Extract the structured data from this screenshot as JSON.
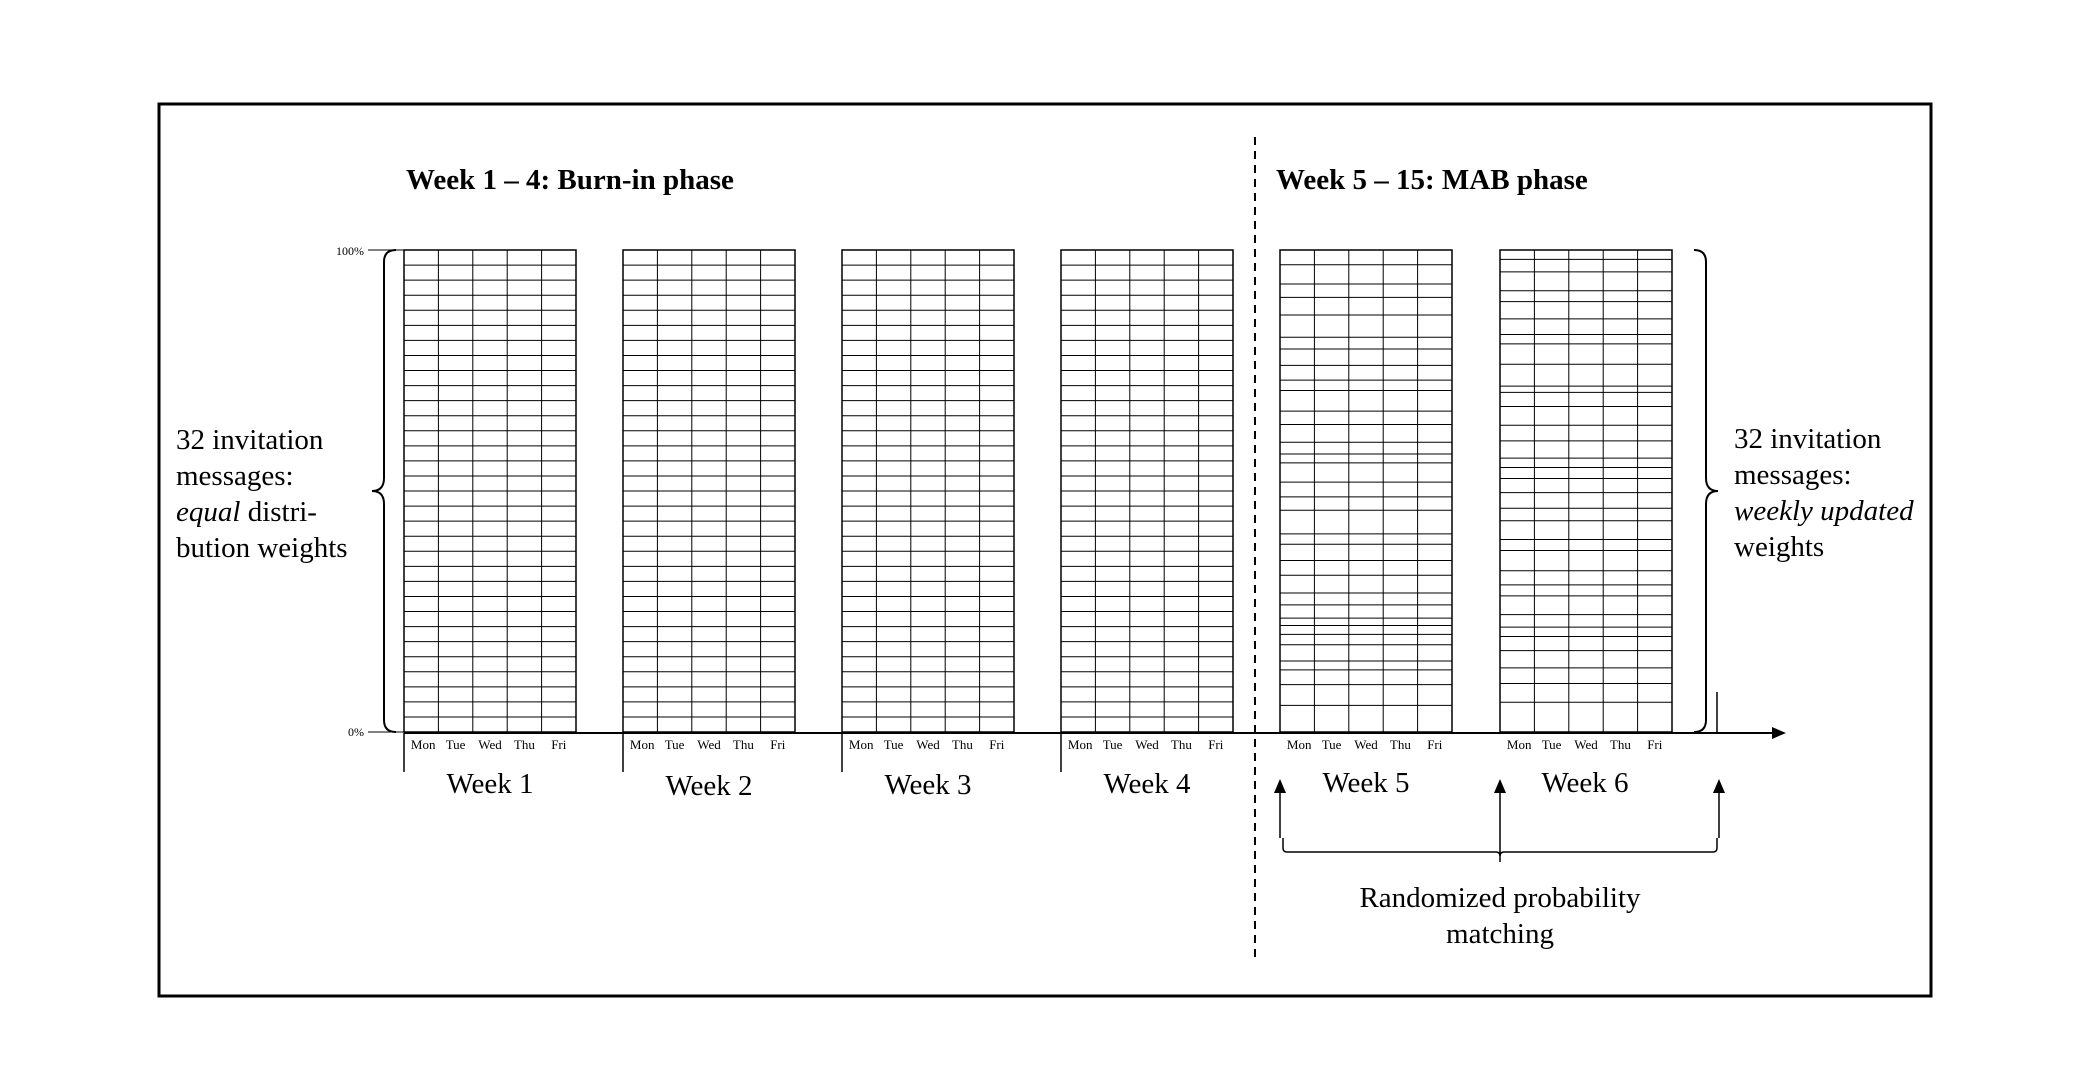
{
  "phases": {
    "burn_in_title": "Week 1 – 4: Burn-in phase",
    "mab_title": "Week 5 – 15: MAB phase"
  },
  "axis": {
    "top_label": "100%",
    "bottom_label": "0%"
  },
  "days": [
    "Mon",
    "Tue",
    "Wed",
    "Thu",
    "Fri"
  ],
  "weeks": [
    {
      "label": "Week 1",
      "phase": "burn-in"
    },
    {
      "label": "Week 2",
      "phase": "burn-in"
    },
    {
      "label": "Week 3",
      "phase": "burn-in"
    },
    {
      "label": "Week 4",
      "phase": "burn-in"
    },
    {
      "label": "Week 5",
      "phase": "mab"
    },
    {
      "label": "Week 6",
      "phase": "mab"
    }
  ],
  "left_note": {
    "line1": "32 invitation",
    "line2": "messages:",
    "line3_italic": "equal",
    "line3_rest": " distri-",
    "line4": "bution weights"
  },
  "right_note": {
    "line1": "32 invitation",
    "line2": "messages:",
    "line3_italic": "weekly updated",
    "line4": "weights"
  },
  "rpm": {
    "line1": "Randomized probability",
    "line2": "matching"
  },
  "message_count": 32,
  "mab_weights": {
    "week5": [
      1.0,
      1.3,
      0.9,
      1.2,
      1.5,
      0.8,
      1.1,
      1.0,
      0.7,
      1.4,
      0.9,
      1.2,
      0.8,
      0.6,
      1.3,
      1.0,
      0.9,
      1.6,
      0.7,
      1.1,
      1.0,
      1.2,
      0.8,
      0.9,
      0.5,
      0.6,
      0.7,
      1.1,
      0.6,
      1.0,
      1.4,
      1.8
    ],
    "week6": [
      0.6,
      0.8,
      1.2,
      0.7,
      1.1,
      1.0,
      0.6,
      1.3,
      1.4,
      0.4,
      0.9,
      1.2,
      1.0,
      1.1,
      0.6,
      0.7,
      0.9,
      1.0,
      0.8,
      1.2,
      0.7,
      1.3,
      0.9,
      0.7,
      1.2,
      0.8,
      0.6,
      0.9,
      1.1,
      1.0,
      1.2,
      1.9
    ]
  }
}
